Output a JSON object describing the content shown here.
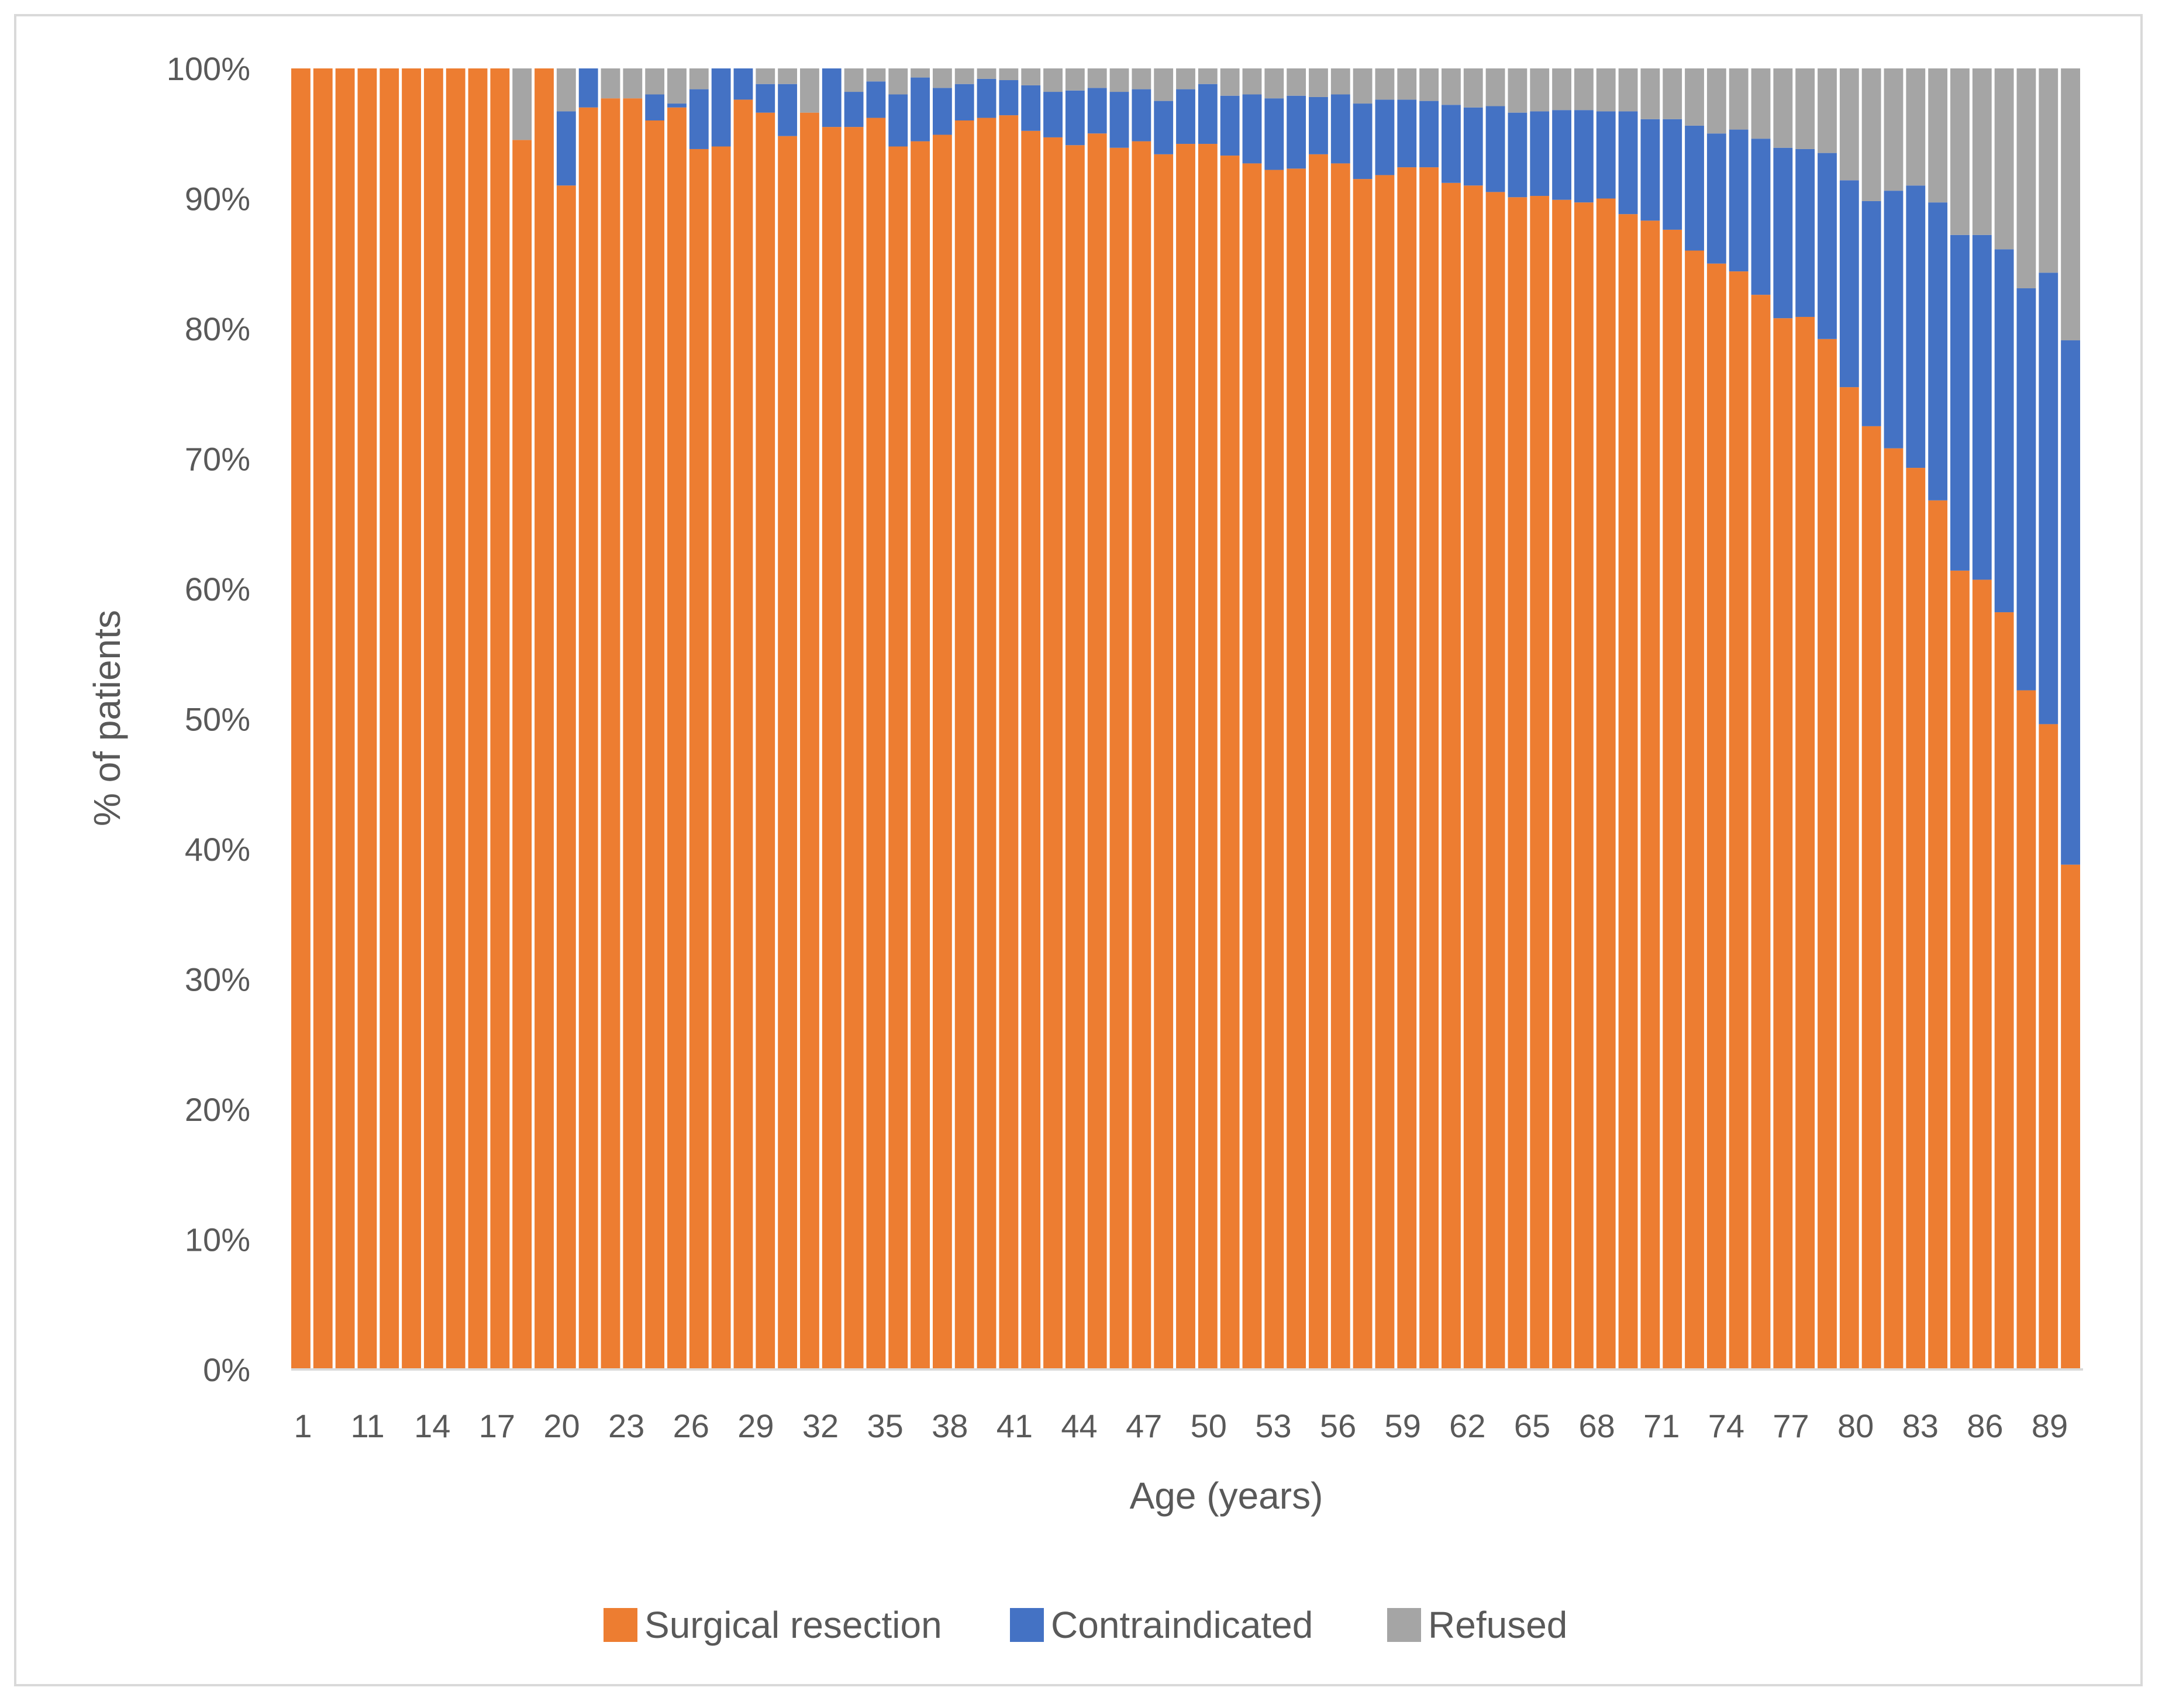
{
  "chart_data": {
    "type": "bar",
    "stacked": true,
    "percent_stacked": true,
    "xlabel": "Age (years)",
    "ylabel": "% of patients",
    "ylim": [
      0,
      100
    ],
    "yticks": [
      "0%",
      "10%",
      "20%",
      "30%",
      "40%",
      "50%",
      "60%",
      "70%",
      "80%",
      "90%",
      "100%"
    ],
    "categories": [
      "1",
      "11",
      "12",
      "13",
      "14",
      "15",
      "16",
      "17",
      "18",
      "19",
      "20",
      "21",
      "22",
      "23",
      "24",
      "25",
      "26",
      "27",
      "28",
      "29",
      "30",
      "31",
      "32",
      "33",
      "34",
      "35",
      "36",
      "37",
      "38",
      "39",
      "40",
      "41",
      "42",
      "43",
      "44",
      "45",
      "46",
      "47",
      "48",
      "49",
      "50",
      "51",
      "52",
      "53",
      "54",
      "55",
      "56",
      "57",
      "58",
      "59",
      "60",
      "61",
      "62",
      "63",
      "64",
      "65",
      "66",
      "67",
      "68",
      "69",
      "70",
      "71",
      "72",
      "73",
      "74",
      "75",
      "76",
      "77",
      "78",
      "79",
      "80",
      "81",
      "82",
      "83",
      "84",
      "85",
      "86",
      "87",
      "88",
      "89",
      "90"
    ],
    "tick_labels": [
      "1",
      "11",
      "14",
      "17",
      "20",
      "23",
      "26",
      "29",
      "32",
      "35",
      "38",
      "41",
      "44",
      "47",
      "50",
      "53",
      "56",
      "59",
      "62",
      "65",
      "68",
      "71",
      "74",
      "77",
      "80",
      "83",
      "86",
      "89"
    ],
    "series": [
      {
        "name": "Surgical resection",
        "color": "#ED7D31",
        "values": [
          100,
          100,
          100,
          100,
          100,
          100,
          100,
          100,
          100,
          100,
          94.5,
          100,
          91,
          97,
          97.7,
          97.7,
          96,
          97,
          93.8,
          94,
          97.6,
          96.6,
          94.8,
          96.6,
          95.5,
          95.5,
          96.2,
          94,
          94.4,
          94.9,
          96,
          96.2,
          96.4,
          95.2,
          94.7,
          94.1,
          95,
          93.9,
          94.4,
          93.4,
          94.2,
          94.2,
          93.3,
          92.7,
          92.2,
          92.3,
          93.4,
          92.7,
          91.5,
          91.8,
          92.4,
          92.4,
          91.2,
          91,
          90.5,
          90.1,
          90.2,
          89.9,
          89.7,
          90,
          88.8,
          88.3,
          87.6,
          86,
          85,
          84.4,
          82.6,
          80.8,
          80.9,
          79.2,
          75.5,
          72.5,
          70.8,
          69.3,
          66.8,
          61.4,
          60.7,
          58.2,
          52.2,
          49.6,
          38.8
        ]
      },
      {
        "name": "Contraindicated",
        "color": "#4472C4",
        "values": [
          0,
          0,
          0,
          0,
          0,
          0,
          0,
          0,
          0,
          0,
          0,
          0,
          5.7,
          3,
          0,
          0,
          2,
          0.3,
          4.6,
          6,
          2.4,
          2.2,
          4,
          0,
          4.5,
          2.7,
          2.8,
          4,
          4.9,
          3.6,
          2.8,
          3,
          2.7,
          3.5,
          3.5,
          4.2,
          3.5,
          4.3,
          4,
          4.1,
          4.2,
          4.6,
          4.6,
          5.3,
          5.5,
          5.6,
          4.4,
          5.3,
          5.8,
          5.8,
          5.2,
          5.1,
          6,
          6,
          6.6,
          6.5,
          6.5,
          6.9,
          7.1,
          6.7,
          7.9,
          7.8,
          8.5,
          9.6,
          10,
          10.9,
          12,
          13.1,
          12.9,
          14.3,
          15.9,
          17.3,
          19.8,
          21.7,
          22.9,
          25.8,
          26.5,
          27.9,
          30.9,
          34.7,
          40.3
        ]
      },
      {
        "name": "Refused",
        "color": "#A5A5A5",
        "values": [
          0,
          0,
          0,
          0,
          0,
          0,
          0,
          0,
          0,
          0,
          5.5,
          0,
          3.3,
          0,
          2.3,
          2.3,
          2,
          2.7,
          1.6,
          0,
          0,
          1.2,
          1.2,
          3.4,
          0,
          1.8,
          1,
          2,
          0.7,
          1.5,
          1.2,
          0.8,
          0.9,
          1.3,
          1.8,
          1.7,
          1.5,
          1.8,
          1.6,
          2.5,
          1.6,
          1.2,
          2.1,
          2,
          2.3,
          2.1,
          2.2,
          2,
          2.7,
          2.4,
          2.4,
          2.5,
          2.8,
          3,
          2.9,
          3.4,
          3.3,
          3.2,
          3.2,
          3.3,
          3.3,
          3.9,
          3.9,
          4.4,
          5,
          4.7,
          5.4,
          6.1,
          6.2,
          6.5,
          8.6,
          10.2,
          9.4,
          9,
          10.3,
          12.8,
          12.8,
          13.9,
          16.9,
          15.7,
          20.9
        ]
      }
    ],
    "legend_position": "bottom",
    "grid": false
  }
}
